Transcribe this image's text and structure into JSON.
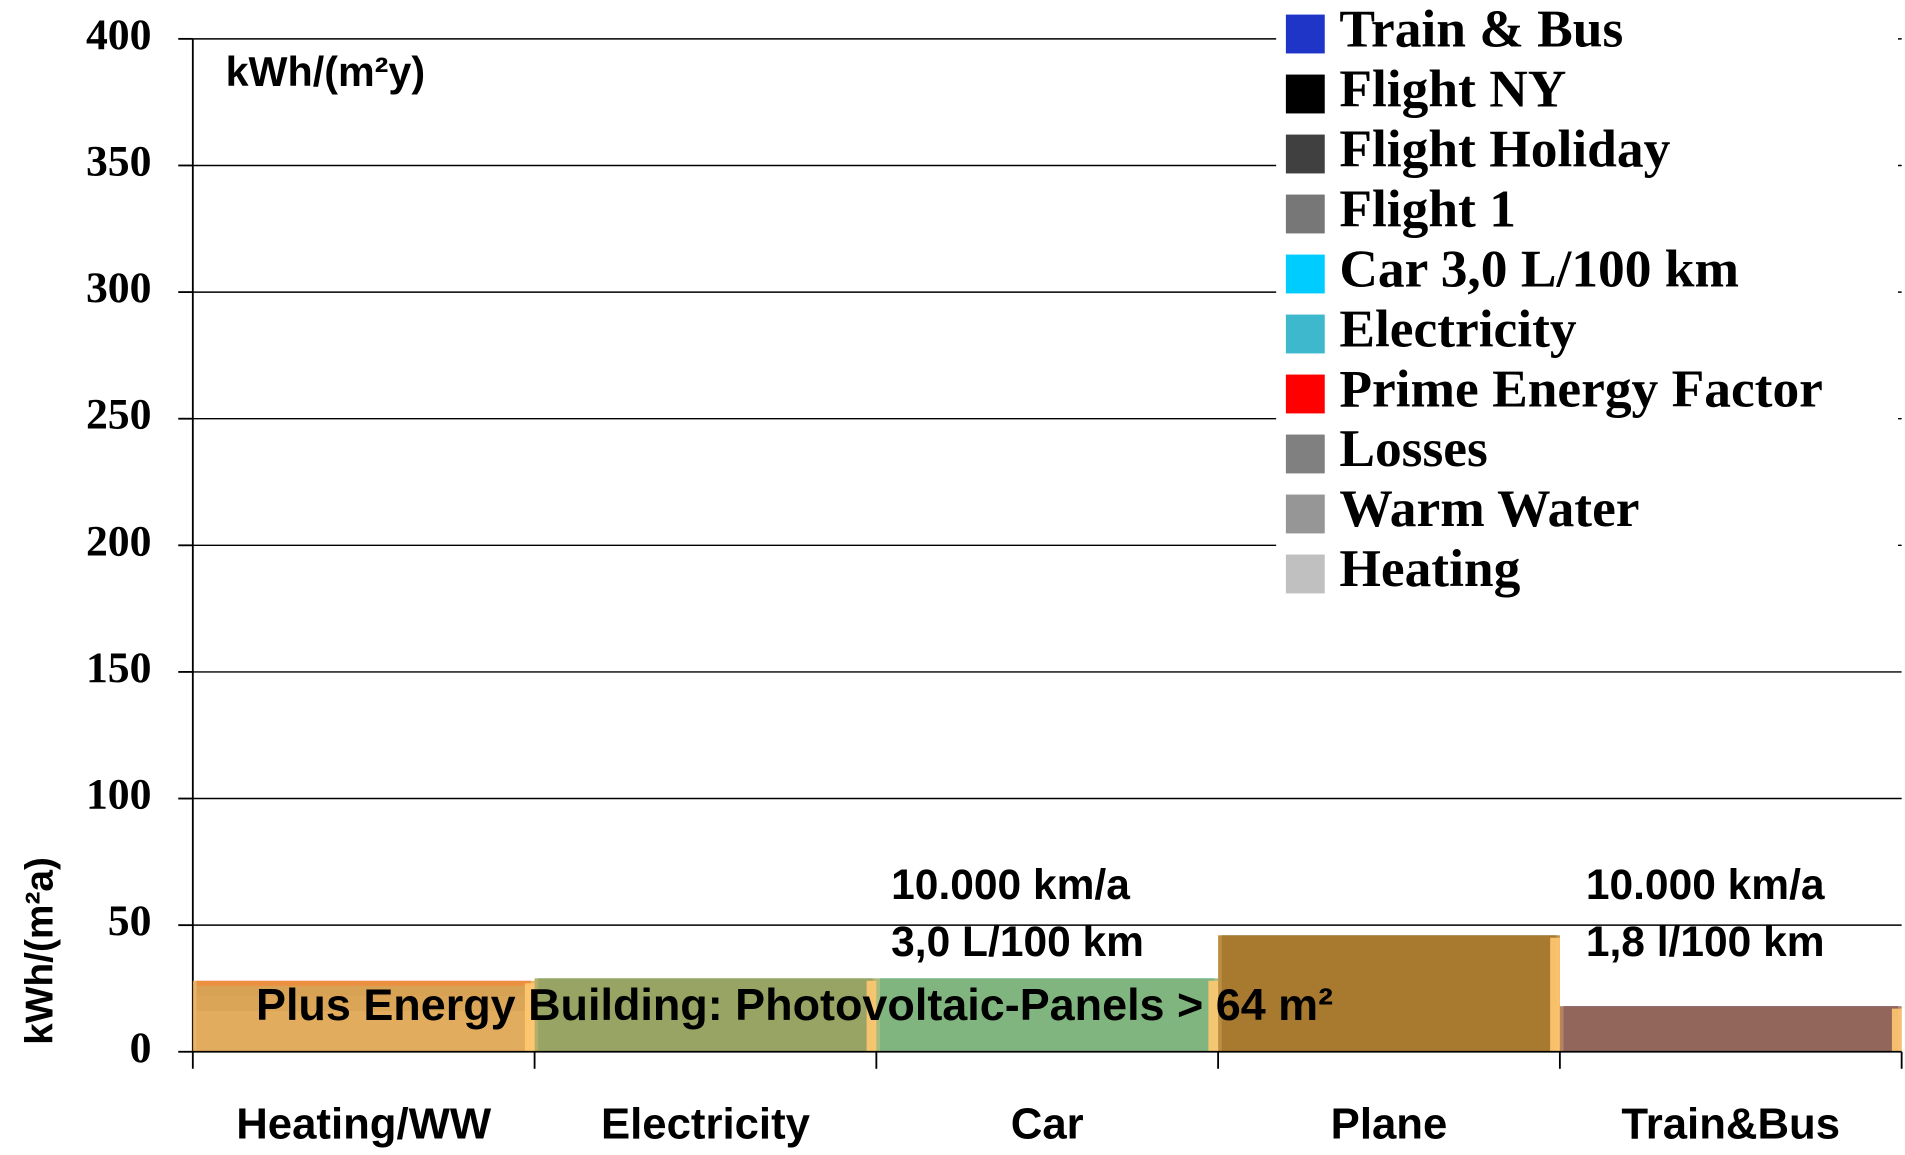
{
  "chart_data": {
    "type": "stacked_bar",
    "unit_label": "kWh/(m²y)",
    "y_label": "kWh/(m²a)",
    "overlay_label": "Plus Energy Building: Photovoltaic-Panels > 64 m²",
    "annotations": [
      "10.000 km/a",
      "3,0 L/100 km",
      "10.000 km/a",
      "1,8 l/100 km"
    ],
    "categories": [
      "Heating/WW",
      "Electricity",
      "Car",
      "Plane",
      "Train&Bus"
    ],
    "series": [
      {
        "name": "Heating",
        "color": "#c0c0c0",
        "values": [
          16,
          0,
          0,
          0,
          0
        ]
      },
      {
        "name": "Warm Water",
        "color": "#969696",
        "values": [
          6,
          0,
          0,
          0,
          0
        ]
      },
      {
        "name": "Losses",
        "color": "#808080",
        "values": [
          4,
          0,
          0,
          0,
          0
        ]
      },
      {
        "name": "Prime Energy Factor",
        "color": "#ff0000",
        "values": [
          2,
          0,
          0,
          0,
          0
        ]
      },
      {
        "name": "Electricity",
        "color": "#3db8cc",
        "values": [
          0,
          29,
          0,
          0,
          0
        ]
      },
      {
        "name": "Car 3,0 L/100 km",
        "color": "#00ccff",
        "values": [
          0,
          0,
          29,
          0,
          0
        ]
      },
      {
        "name": "Flight 1",
        "color": "#777777",
        "values": [
          0,
          0,
          0,
          46,
          0
        ]
      },
      {
        "name": "Flight Holiday",
        "color": "#404040",
        "values": [
          0,
          0,
          0,
          0,
          0
        ]
      },
      {
        "name": "Flight NY",
        "color": "#000000",
        "values": [
          0,
          0,
          0,
          0,
          0
        ]
      },
      {
        "name": "Train & Bus",
        "color": "#1f35c8",
        "values": [
          0,
          0,
          0,
          0,
          18
        ]
      }
    ],
    "bar_colors": [
      "#e8a84c",
      "#a8a050",
      "#98b068",
      "#b07a22",
      "#a86e48"
    ],
    "ylim": [
      0,
      400
    ],
    "yticks": [
      0,
      50,
      100,
      150,
      200,
      250,
      300,
      350,
      400
    ],
    "grid": true
  }
}
